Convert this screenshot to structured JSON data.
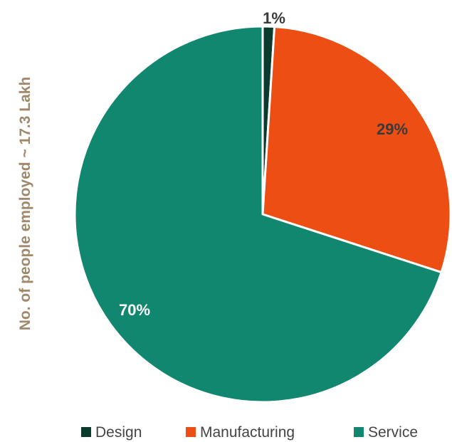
{
  "chart_data": {
    "type": "pie",
    "title": "",
    "ylabel": "No. of people employed ~ 17.3 Lakh",
    "slices": [
      {
        "name": "Design",
        "value": 1,
        "label": "1%",
        "color": "#0b3b2e",
        "label_color": "#3a3a3a"
      },
      {
        "name": "Manufacturing",
        "value": 29,
        "label": "29%",
        "color": "#ec4e14",
        "label_color": "#3a3a3a"
      },
      {
        "name": "Service",
        "value": 70,
        "label": "70%",
        "color": "#128770",
        "label_color": "#ffffff"
      }
    ],
    "legend_position": "bottom"
  },
  "colors": {
    "ylabel": "#a0886a",
    "legend_text": "#444444",
    "slice_border": "#ffffff"
  }
}
